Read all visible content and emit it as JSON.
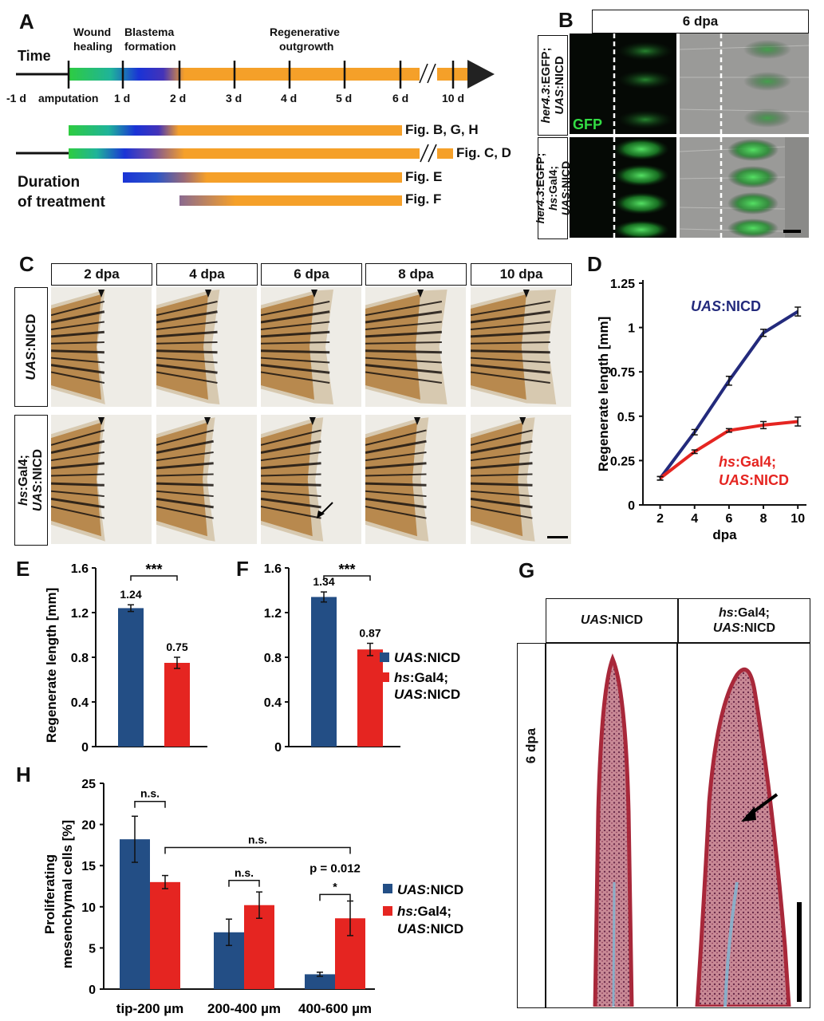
{
  "panels": {
    "A": "A",
    "B": "B",
    "C": "C",
    "D": "D",
    "E": "E",
    "F": "F",
    "G": "G",
    "H": "H"
  },
  "panelA": {
    "time": "Time",
    "phases": [
      "Wound\nhealing",
      "Blastema\nformation",
      "Regenerative\noutgrowth"
    ],
    "phase1a": "Wound",
    "phase1b": "healing",
    "phase2a": "Blastema",
    "phase2b": "formation",
    "phase3a": "Regenerative",
    "phase3b": "outgrowth",
    "ticks": [
      "-1 d",
      "amputation",
      "1 d",
      "2 d",
      "3 d",
      "4 d",
      "5 d",
      "6 d",
      "10 d"
    ],
    "duration1": "Duration",
    "duration2": "of treatment",
    "bars": [
      "Fig. B, G, H",
      "Fig. C, D",
      "Fig. E",
      "Fig. F"
    ],
    "colors": {
      "green": "#2ecc40",
      "blue": "#1a33d6",
      "orange": "#f5a029"
    }
  },
  "panelB": {
    "header": "6 dpa",
    "row1_it": "her4.3",
    "row1a": ":EGFP;",
    "row1_it2": "UAS",
    "row1b": ":NICD",
    "row2_it": "her4.3",
    "row2a": ":EGFP;",
    "row2_it2": "hs",
    "row2b": ":Gal4;",
    "row2_it3": "UAS",
    "row2c": ":NICD",
    "gfp": "GFP"
  },
  "panelC": {
    "days": [
      "2 dpa",
      "4 dpa",
      "6 dpa",
      "8 dpa",
      "10 dpa"
    ],
    "row1_it": "UAS",
    "row1": ":NICD",
    "row2_it": "hs",
    "row2": ":Gal4;",
    "row2_it2": "UAS",
    "row2b": ":NICD"
  },
  "chart_data": [
    {
      "type": "line",
      "panel": "D",
      "x": [
        2,
        4,
        6,
        8,
        10
      ],
      "xlabel": "dpa",
      "ylabel": "Regenerate length [mm]",
      "ylim": [
        0,
        1.25
      ],
      "yticks": [
        "0",
        "0.25",
        "0.5",
        "0.75",
        "1",
        "1.25"
      ],
      "series": [
        {
          "name": "UAS:NICD",
          "color": "#232a7c",
          "values": [
            0.15,
            0.41,
            0.7,
            0.97,
            1.09
          ],
          "err": [
            0.01,
            0.015,
            0.025,
            0.02,
            0.025
          ]
        },
        {
          "name": "hs:Gal4; UAS:NICD",
          "color": "#e52521",
          "values": [
            0.15,
            0.3,
            0.42,
            0.45,
            0.47
          ],
          "err": [
            0.01,
            0.01,
            0.01,
            0.02,
            0.025
          ]
        }
      ]
    },
    {
      "type": "bar",
      "panel": "E",
      "ylabel": "Regenerate length [mm]",
      "ylim": [
        0,
        1.6
      ],
      "yticks": [
        "0",
        "0.4",
        "0.8",
        "1.2",
        "1.6"
      ],
      "values": [
        1.24,
        0.75
      ],
      "labels": [
        "1.24",
        "0.75"
      ],
      "err": [
        0.03,
        0.05
      ],
      "sig": "***"
    },
    {
      "type": "bar",
      "panel": "F",
      "ylim": [
        0,
        1.6
      ],
      "yticks": [
        "0",
        "0.4",
        "0.8",
        "1.2",
        "1.6"
      ],
      "values": [
        1.34,
        0.87
      ],
      "labels": [
        "1.34",
        "0.87"
      ],
      "err": [
        0.045,
        0.055
      ],
      "sig": "***",
      "legend": [
        "UAS:NICD",
        "hs:Gal4; UAS:NICD"
      ]
    },
    {
      "type": "bar",
      "panel": "H",
      "ylabel1": "Proliferating",
      "ylabel2": "mesenchymal cells [%]",
      "ylim": [
        0,
        25
      ],
      "yticks": [
        "0",
        "5",
        "10",
        "15",
        "20",
        "25"
      ],
      "categories": [
        "tip-200 µm",
        "200-400 µm",
        "400-600 µm"
      ],
      "series": [
        {
          "name": "UAS:NICD",
          "color": "#234e85",
          "values": [
            18.2,
            6.9,
            1.8
          ],
          "err": [
            2.8,
            1.6,
            0.25
          ]
        },
        {
          "name": "hs:Gal4; UAS:NICD",
          "color": "#e52521",
          "values": [
            13.0,
            10.2,
            8.6
          ],
          "err": [
            0.8,
            1.6,
            2.1
          ]
        }
      ],
      "annotations": [
        "n.s.",
        "n.s.",
        "n.s.",
        "p = 0.012",
        "*"
      ]
    }
  ],
  "panelG": {
    "col1_it": "UAS",
    "col1": ":NICD",
    "col2_it": "hs",
    "col2": ":Gal4;",
    "col2_it2": "UAS",
    "col2b": ":NICD",
    "row": "6 dpa"
  },
  "legend": {
    "s1_it": "UAS",
    "s1": ":NICD",
    "s2_it": "hs",
    "s2": ":Gal4;",
    "s2b_it": "UAS",
    "s2b": ":NICD",
    "s2_it_colon": "hs:",
    "s2_rest": "Gal4;"
  }
}
